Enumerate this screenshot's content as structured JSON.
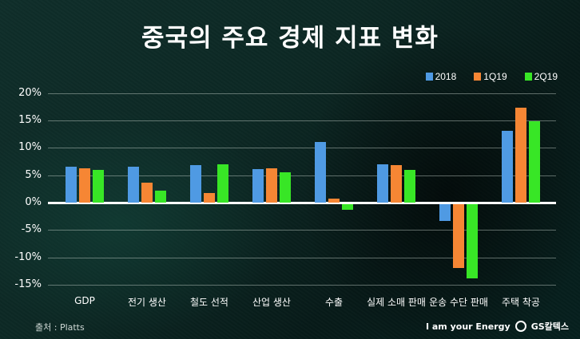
{
  "title": "중국의 주요 경제 지표 변화",
  "legend": [
    {
      "label": "2018",
      "color": "#4f9ae3"
    },
    {
      "label": "1Q19",
      "color": "#f68634"
    },
    {
      "label": "2Q19",
      "color": "#38e626"
    }
  ],
  "y_ticks": [
    "20%",
    "15%",
    "10%",
    "5%",
    "0%",
    "-5%",
    "-10%",
    "-15%"
  ],
  "source": "출처 : Platts",
  "brand": {
    "slogan": "I am your Energy",
    "name": "GS칼텍스"
  },
  "chart_data": {
    "type": "bar",
    "title": "중국의 주요 경제 지표 변화",
    "xlabel": "",
    "ylabel": "",
    "ylim": [
      -15,
      20
    ],
    "yticks": [
      20,
      15,
      10,
      5,
      0,
      -5,
      -10,
      -15
    ],
    "grid": true,
    "legend_position": "top-right",
    "categories": [
      "GDP",
      "전기 생산",
      "철도 선적",
      "산업 생산",
      "수출",
      "실제 소매 판매",
      "운송 수단 판매",
      "주택 착공"
    ],
    "series": [
      {
        "name": "2018",
        "color": "#4f9ae3",
        "values": [
          6.6,
          6.6,
          6.9,
          6.1,
          11.1,
          7.0,
          -3.0,
          13.1
        ]
      },
      {
        "name": "1Q19",
        "color": "#f68634",
        "values": [
          6.3,
          3.6,
          1.8,
          6.2,
          0.7,
          6.8,
          -11.6,
          17.3
        ]
      },
      {
        "name": "2Q19",
        "color": "#38e626",
        "values": [
          6.0,
          2.2,
          7.0,
          5.6,
          -1.0,
          6.0,
          -13.5,
          14.8
        ]
      }
    ],
    "source": "출처 : Platts"
  }
}
